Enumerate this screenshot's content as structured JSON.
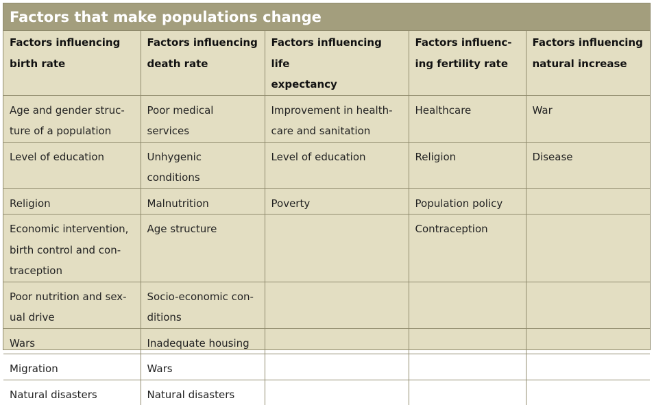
{
  "title": "Factors that make populations change",
  "headers": [
    "Factors influencing\nbirth rate",
    "Factors influencing\ndeath rate",
    "Factors influencing life\nexpectancy",
    "Factors influenc-\ning fertility rate",
    "Factors influencing\nnatural increase"
  ],
  "rows": [
    [
      "Age and gender struc-\nture of a population",
      "Poor medical\nservices",
      "Improvement in health-\ncare and sanitation",
      "Healthcare",
      "War"
    ],
    [
      "Level of education",
      "Unhygenic\nconditions",
      "Level of education",
      "Religion",
      "Disease"
    ],
    [
      "Religion",
      "Malnutrition",
      "Poverty",
      "Population policy",
      ""
    ],
    [
      "Economic intervention,\nbirth control and con-\ntraception",
      "Age structure",
      "",
      "Contraception",
      ""
    ],
    [
      "Poor nutrition and sex-\nual drive",
      "Socio-economic con-\nditions",
      "",
      "",
      ""
    ],
    [
      "Wars",
      "Inadequate housing",
      "",
      "",
      ""
    ],
    [
      "Migration",
      "Wars",
      "",
      "",
      ""
    ],
    [
      "Natural disasters",
      "Natural disasters",
      "",
      "",
      ""
    ]
  ],
  "colors": {
    "title_background": "#a39e7d",
    "table_background": "#e3dec2",
    "grid_lines": "#8f8a6c",
    "title_text": "#ffffff"
  }
}
